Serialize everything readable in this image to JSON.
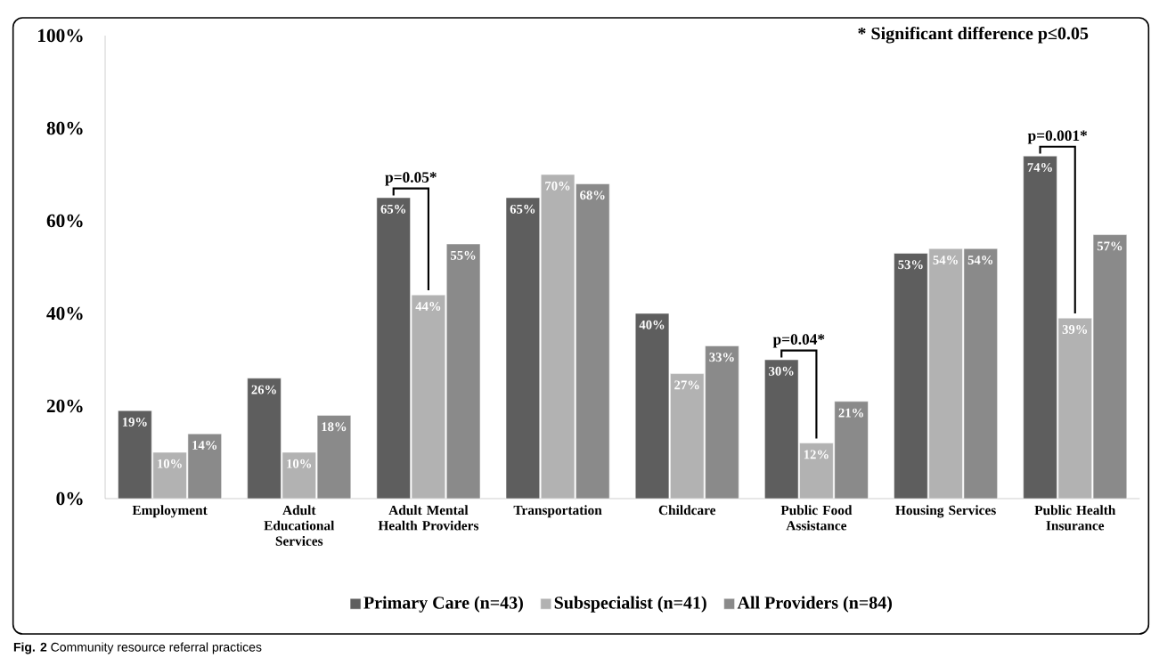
{
  "chart_data": {
    "type": "bar",
    "categories": [
      "Employment",
      "Adult Educational Services",
      "Adult Mental Health Providers",
      "Transportation",
      "Childcare",
      "Public Food Assistance",
      "Housing Services",
      "Public Health Insurance"
    ],
    "series": [
      {
        "name": "Primary Care (n=43)",
        "color": "#5e5e5e",
        "values": [
          19,
          26,
          65,
          65,
          40,
          30,
          53,
          74
        ],
        "value_labels": [
          "19%",
          "26%",
          "65%",
          "65%",
          "40%",
          "30%",
          "53%",
          "74%"
        ]
      },
      {
        "name": "Subspecialist (n=41)",
        "color": "#b2b2b2",
        "values": [
          10,
          10,
          44,
          70,
          27,
          12,
          54,
          39
        ],
        "value_labels": [
          "10%",
          "10%",
          "44%",
          "70%",
          "27%",
          "12%",
          "54%",
          "39%"
        ]
      },
      {
        "name": "All Providers (n=84)",
        "color": "#8a8a8a",
        "values": [
          14,
          18,
          55,
          68,
          33,
          21,
          54,
          57
        ],
        "value_labels": [
          "14%",
          "18%",
          "55%",
          "68%",
          "33%",
          "21%",
          "54%",
          "57%"
        ]
      }
    ],
    "ylim": [
      0,
      100
    ],
    "yticks": [
      {
        "value": 0,
        "label": "0%"
      },
      {
        "value": 20,
        "label": "20%"
      },
      {
        "value": 40,
        "label": "40%"
      },
      {
        "value": 60,
        "label": "60%"
      },
      {
        "value": 80,
        "label": "80%"
      },
      {
        "value": 100,
        "label": "100%"
      }
    ],
    "grid": false,
    "legend": "bottom",
    "annotations": [
      "* Significant difference p≤0.05",
      "p=0.05*",
      "p=0.04*",
      "p=0.001*",
      "**Fig. 2** Community resource referral practices"
    ]
  }
}
